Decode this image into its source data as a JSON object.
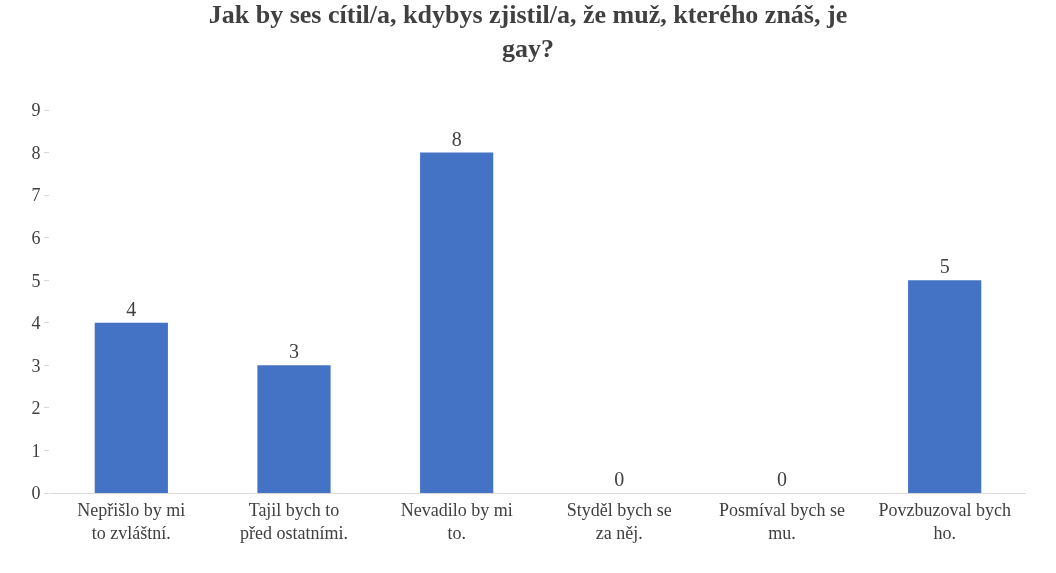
{
  "chart_data": {
    "type": "bar",
    "title": "Jak by ses cítil/a, kdybys zjistil/a, že muž, kterého znáš, je gay?",
    "categories": [
      "Nepřišlo by mi to zvláštní.",
      "Tajil bych to před ostatními.",
      "Nevadilo by mi to.",
      "Styděl bych se za něj.",
      "Posmíval bych se mu.",
      "Povzbuzoval bych ho."
    ],
    "values": [
      4,
      3,
      8,
      0,
      0,
      5
    ],
    "color": "#4472c4",
    "ylim": [
      0,
      9
    ],
    "yticks": [
      0,
      1,
      2,
      3,
      4,
      5,
      6,
      7,
      8,
      9
    ],
    "grid": false,
    "data_labels": true
  }
}
